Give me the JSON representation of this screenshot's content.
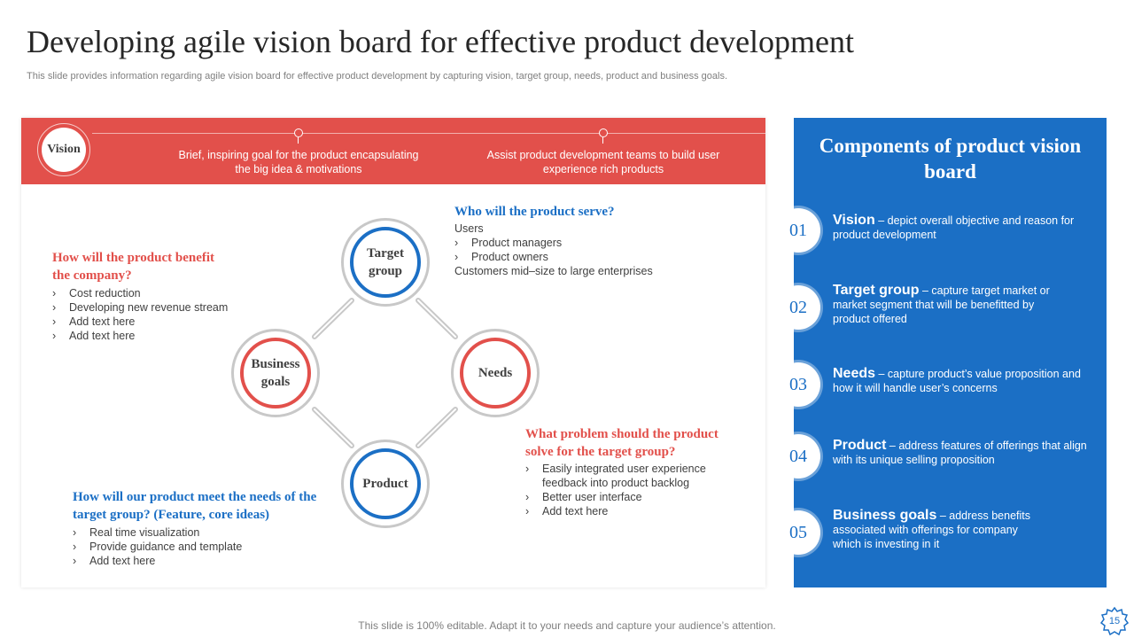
{
  "header": {
    "title": "Developing agile vision board for effective product development",
    "subtitle": "This slide provides information regarding agile vision board for effective product development by capturing vision, target group, needs, product and business goals."
  },
  "vision_bar": {
    "label": "Vision",
    "text1": "Brief, inspiring goal for the product encapsulating the big idea & motivations",
    "text2": "Assist product development teams to build user experience rich products"
  },
  "diagram": {
    "nodes": {
      "target_group": "Target group",
      "needs": "Needs",
      "business_goals": "Business goals",
      "product": "Product"
    }
  },
  "questions": {
    "serve": {
      "title": "Who will the product serve?",
      "users_label": "Users",
      "items": [
        "Product managers",
        "Product owners"
      ],
      "customers": "Customers mid–size to large enterprises"
    },
    "benefit": {
      "title": "How will the product benefit the company?",
      "items": [
        "Cost reduction",
        "Developing new revenue stream",
        "Add text here",
        "Add text here"
      ]
    },
    "problem": {
      "title": "What problem should the product solve for the target group?",
      "items": [
        "Easily integrated user experience feedback into product backlog",
        "Better user interface",
        "Add text here"
      ]
    },
    "meet": {
      "title": "How will our product meet the needs of the target group? (Feature, core ideas)",
      "items": [
        "Real time visualization",
        "Provide guidance and template",
        "Add text here"
      ]
    }
  },
  "components": {
    "title": "Components of product vision board",
    "items": [
      {
        "num": "01",
        "title": "Vision",
        "text": " – depict overall objective and reason for product development"
      },
      {
        "num": "02",
        "title": "Target group",
        "text": " – capture target market or market segment that will be benefitted by product offered"
      },
      {
        "num": "03",
        "title": "Needs",
        "text": " – capture product’s value proposition and how it will handle user’s concerns"
      },
      {
        "num": "04",
        "title": "Product",
        "text": " – address features of offerings that align with its unique selling proposition"
      },
      {
        "num": "05",
        "title": "Business goals",
        "text": " – address benefits associated with offerings for company which is investing in it"
      }
    ]
  },
  "footer": {
    "text": "This slide is 100% editable. Adapt it to your needs and capture your audience’s attention.",
    "page": "15"
  },
  "colors": {
    "red": "#e2504b",
    "blue": "#1b6fc5",
    "connector_gray": "#c8c8c8"
  }
}
